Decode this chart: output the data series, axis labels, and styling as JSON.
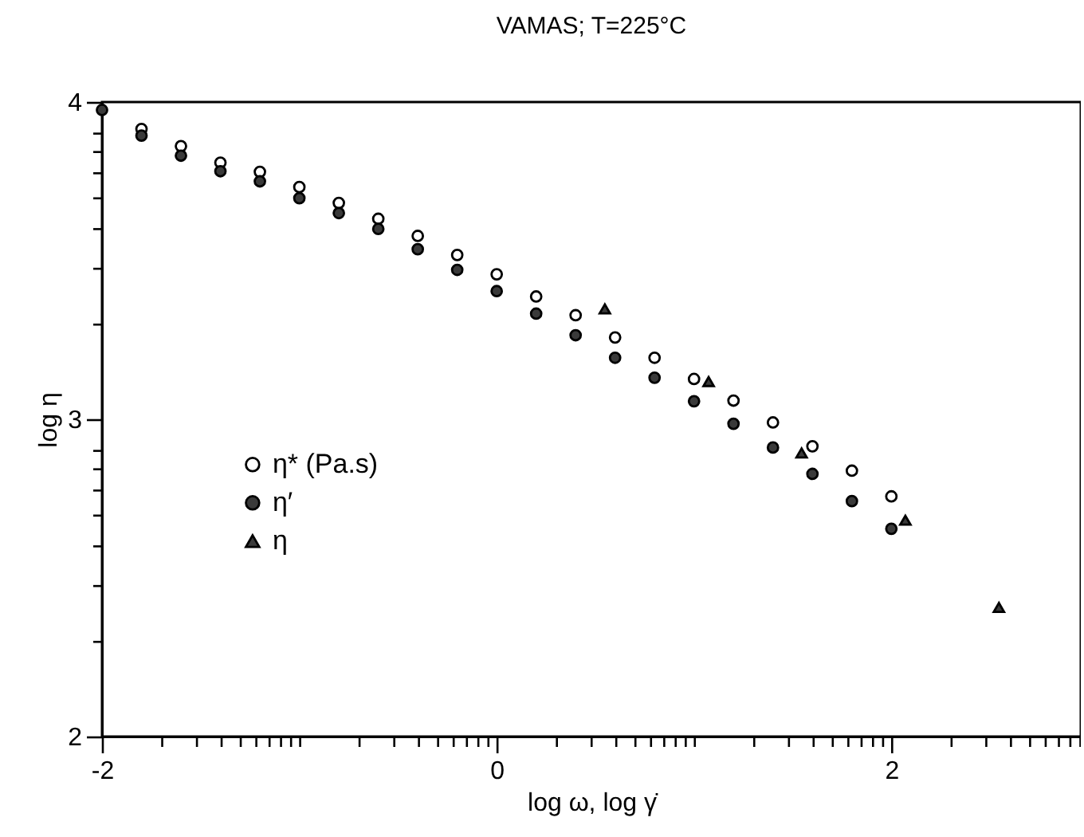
{
  "chart_data": {
    "type": "scatter",
    "title": "VAMAS; T=225°C",
    "xlabel": "log ω, log γ̇",
    "ylabel": "log η",
    "xlim": [
      -2,
      2.96
    ],
    "ylim": [
      2,
      4
    ],
    "xticks": [
      -2,
      {
        "value": -1.699,
        "label": null
      },
      {
        "value": -1.523,
        "label": null
      },
      {
        "value": -1.398,
        "label": null
      },
      {
        "value": -1.301,
        "label": null
      },
      {
        "value": -1.222,
        "label": null
      },
      {
        "value": -1.155,
        "label": null
      },
      {
        "value": -1.097,
        "label": null
      },
      {
        "value": -1.046,
        "label": null
      },
      {
        "value": -1,
        "label": null
      },
      {
        "value": -0.699,
        "label": null
      },
      {
        "value": -0.523,
        "label": null
      },
      {
        "value": -0.398,
        "label": null
      },
      {
        "value": -0.301,
        "label": null
      },
      {
        "value": -0.222,
        "label": null
      },
      {
        "value": -0.155,
        "label": null
      },
      {
        "value": -0.097,
        "label": null
      },
      {
        "value": -0.046,
        "label": null
      },
      0,
      {
        "value": 0.301,
        "label": null
      },
      {
        "value": 0.477,
        "label": null
      },
      {
        "value": 0.602,
        "label": null
      },
      {
        "value": 0.699,
        "label": null
      },
      {
        "value": 0.778,
        "label": null
      },
      {
        "value": 0.845,
        "label": null
      },
      {
        "value": 0.903,
        "label": null
      },
      {
        "value": 0.954,
        "label": null
      },
      {
        "value": 1,
        "label": null
      },
      {
        "value": 1.301,
        "label": null
      },
      {
        "value": 1.477,
        "label": null
      },
      {
        "value": 1.602,
        "label": null
      },
      {
        "value": 1.699,
        "label": null
      },
      {
        "value": 1.778,
        "label": null
      },
      {
        "value": 1.845,
        "label": null
      },
      {
        "value": 1.903,
        "label": null
      },
      {
        "value": 1.954,
        "label": null
      },
      2,
      {
        "value": 2.301,
        "label": null
      },
      {
        "value": 2.477,
        "label": null
      },
      {
        "value": 2.602,
        "label": null
      },
      {
        "value": 2.699,
        "label": null
      },
      {
        "value": 2.778,
        "label": null
      },
      {
        "value": 2.845,
        "label": null
      },
      {
        "value": 2.903,
        "label": null
      },
      {
        "value": 2.954,
        "label": null
      }
    ],
    "yticks": [
      2,
      {
        "value": 2.301,
        "label": null
      },
      {
        "value": 2.477,
        "label": null
      },
      {
        "value": 2.602,
        "label": null
      },
      {
        "value": 2.699,
        "label": null
      },
      {
        "value": 2.778,
        "label": null
      },
      {
        "value": 2.845,
        "label": null
      },
      {
        "value": 2.903,
        "label": null
      },
      3,
      {
        "value": 3.301,
        "label": null
      },
      {
        "value": 3.477,
        "label": null
      },
      {
        "value": 3.602,
        "label": null
      },
      {
        "value": 3.699,
        "label": null
      },
      {
        "value": 3.778,
        "label": null
      },
      {
        "value": 3.845,
        "label": null
      },
      {
        "value": 3.903,
        "label": null
      },
      4
    ],
    "grid": false,
    "legend": "left",
    "series": [
      {
        "name": "η* (Pa.s)",
        "color": "#ffffff",
        "marker": "circle",
        "x": [
          -1.8,
          -1.6,
          -1.4,
          -1.2,
          -1.0,
          -0.8,
          -0.6,
          -0.4,
          -0.2,
          0,
          0.2,
          0.4,
          0.6,
          0.8,
          1.0,
          1.2,
          1.4,
          1.6,
          1.8,
          2.0
        ],
        "values": [
          3.915,
          3.861,
          3.809,
          3.78,
          3.732,
          3.682,
          3.632,
          3.578,
          3.518,
          3.457,
          3.387,
          3.328,
          3.258,
          3.194,
          3.127,
          3.059,
          2.99,
          2.915,
          2.838,
          2.757
        ]
      },
      {
        "name": "η′",
        "color": "#3a3a3a",
        "marker": "circle",
        "x": [
          -2,
          -1.8,
          -1.6,
          -1.4,
          -1.2,
          -1.0,
          -0.8,
          -0.6,
          -0.4,
          -0.2,
          0,
          0.2,
          0.4,
          0.6,
          0.8,
          1.0,
          1.2,
          1.4,
          1.6,
          1.8,
          2.0
        ],
        "values": [
          3.975,
          3.894,
          3.831,
          3.782,
          3.75,
          3.697,
          3.65,
          3.6,
          3.536,
          3.471,
          3.404,
          3.333,
          3.265,
          3.194,
          3.131,
          3.057,
          2.986,
          2.911,
          2.828,
          2.742,
          2.655
        ]
      },
      {
        "name": "η",
        "color": "#3a3a3a",
        "marker": "triangle",
        "x": [
          0.548,
          1.074,
          1.545,
          2.071,
          2.545
        ],
        "values": [
          3.348,
          3.119,
          2.894,
          2.682,
          2.407
        ]
      }
    ]
  }
}
